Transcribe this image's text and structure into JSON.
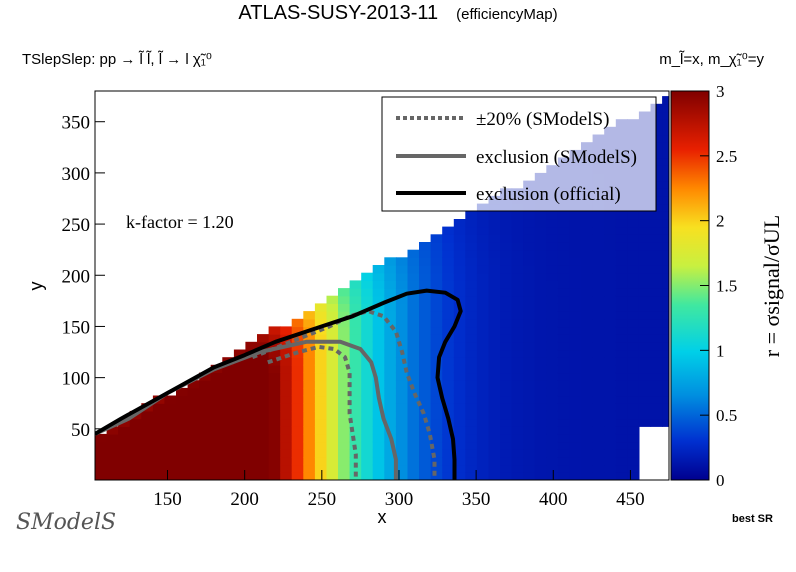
{
  "header": {
    "title": "ATLAS-SUSY-2013-11",
    "subtitle": "(efficiencyMap)",
    "process": "TSlepSlep: pp  → l̃ l̃, l̃  → l χ̃₁⁰",
    "mass_label": "m_l̃=x, m_χ̃₁⁰=y"
  },
  "footer": {
    "best_sr": "best SR",
    "logo_text": "SModelS"
  },
  "chart_data": {
    "type": "heatmap",
    "xlabel": "x",
    "ylabel": "y",
    "zlabel": "r = σsignal/σUL",
    "xlim": [
      103,
      475
    ],
    "ylim": [
      0,
      380
    ],
    "zlim": [
      0,
      3
    ],
    "x_ticks": [
      150,
      200,
      250,
      300,
      350,
      400,
      450
    ],
    "y_ticks": [
      50,
      100,
      150,
      200,
      250,
      300,
      350
    ],
    "z_ticks": [
      "0",
      "0.5",
      "1",
      "1.5",
      "2",
      "2.5",
      "3"
    ],
    "annotation": "k-factor = 1.20",
    "grid": false,
    "legend_position": "top-right",
    "legend": [
      {
        "label": "±20% (SModelS)",
        "style": "dotted",
        "color": "#666666"
      },
      {
        "label": "exclusion (SModelS)",
        "style": "solid",
        "color": "#666666"
      },
      {
        "label": "exclusion (official)",
        "style": "solid",
        "color": "#000000"
      }
    ],
    "contours": {
      "official": [
        [
          103,
          45
        ],
        [
          120,
          60
        ],
        [
          150,
          85
        ],
        [
          180,
          110
        ],
        [
          200,
          122
        ],
        [
          220,
          135
        ],
        [
          250,
          150
        ],
        [
          270,
          160
        ],
        [
          290,
          173
        ],
        [
          305,
          182
        ],
        [
          318,
          185
        ],
        [
          330,
          183
        ],
        [
          338,
          176
        ],
        [
          340,
          165
        ],
        [
          336,
          150
        ],
        [
          330,
          135
        ],
        [
          326,
          120
        ],
        [
          325,
          100
        ],
        [
          328,
          80
        ],
        [
          332,
          60
        ],
        [
          335,
          40
        ],
        [
          336,
          20
        ],
        [
          336,
          0
        ]
      ],
      "smodels": [
        [
          103,
          45
        ],
        [
          125,
          60
        ],
        [
          150,
          85
        ],
        [
          180,
          108
        ],
        [
          210,
          125
        ],
        [
          240,
          135
        ],
        [
          262,
          135
        ],
        [
          275,
          128
        ],
        [
          282,
          115
        ],
        [
          285,
          100
        ],
        [
          287,
          80
        ],
        [
          290,
          60
        ],
        [
          295,
          40
        ],
        [
          298,
          20
        ],
        [
          298,
          0
        ]
      ],
      "plus20": [
        [
          205,
          120
        ],
        [
          230,
          135
        ],
        [
          255,
          150
        ],
        [
          268,
          160
        ],
        [
          280,
          165
        ],
        [
          290,
          160
        ],
        [
          298,
          145
        ],
        [
          302,
          125
        ],
        [
          305,
          105
        ],
        [
          310,
          85
        ],
        [
          316,
          65
        ],
        [
          320,
          45
        ],
        [
          323,
          20
        ],
        [
          323,
          0
        ]
      ],
      "minus20": [
        [
          215,
          115
        ],
        [
          235,
          125
        ],
        [
          248,
          130
        ],
        [
          258,
          128
        ],
        [
          265,
          120
        ],
        [
          268,
          105
        ],
        [
          268,
          85
        ],
        [
          268,
          65
        ],
        [
          270,
          45
        ],
        [
          272,
          25
        ],
        [
          272,
          0
        ]
      ]
    }
  }
}
